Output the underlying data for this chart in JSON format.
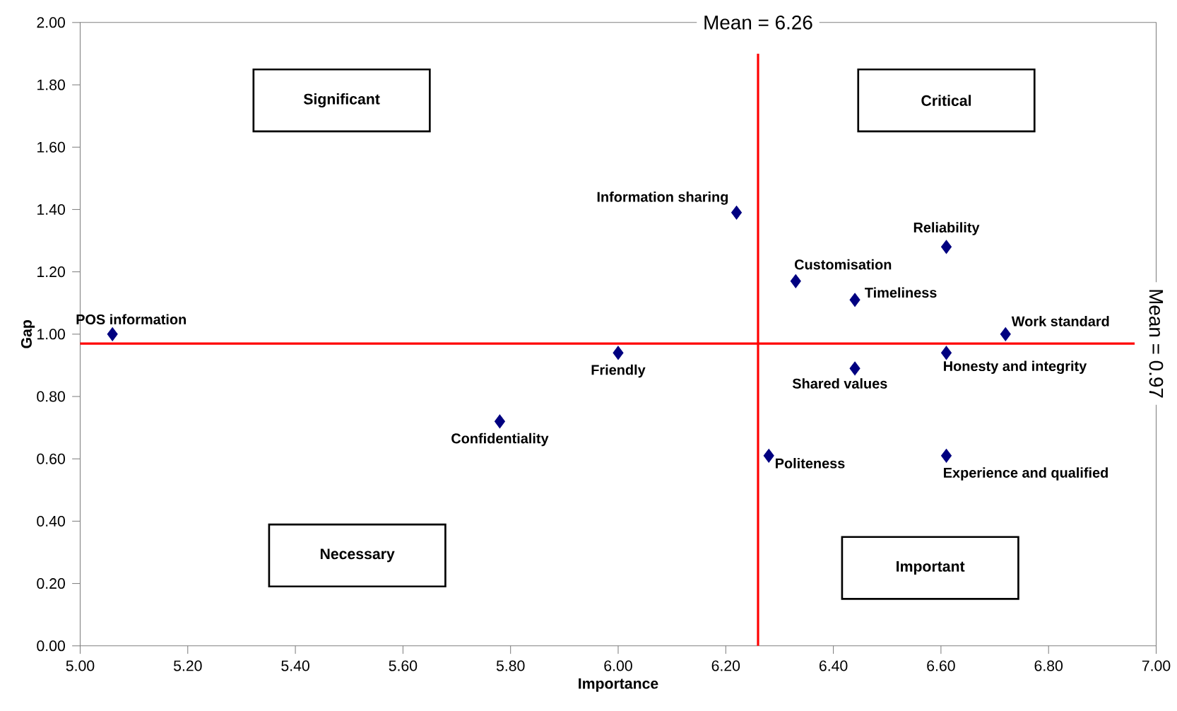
{
  "chart_data": {
    "type": "scatter",
    "xlabel": "Importance",
    "ylabel": "Gap",
    "marker": "diamond",
    "xlim": [
      5,
      7
    ],
    "ylim": [
      0,
      2
    ],
    "xticks": [
      {
        "value": 5,
        "label": "5.00"
      },
      {
        "value": 5.2,
        "label": "5.20"
      },
      {
        "value": 5.4,
        "label": "5.40"
      },
      {
        "value": 5.6,
        "label": "5.60"
      },
      {
        "value": 5.8,
        "label": "5.80"
      },
      {
        "value": 6,
        "label": "6.00"
      },
      {
        "value": 6.2,
        "label": "6.20"
      },
      {
        "value": 6.4,
        "label": "6.40"
      },
      {
        "value": 6.6,
        "label": "6.60"
      },
      {
        "value": 6.8,
        "label": "6.80"
      },
      {
        "value": 7,
        "label": "7.00"
      }
    ],
    "yticks": [
      {
        "value": 0,
        "label": "0.00"
      },
      {
        "value": 0.2,
        "label": "0.20"
      },
      {
        "value": 0.4,
        "label": "0.40"
      },
      {
        "value": 0.6,
        "label": "0.60"
      },
      {
        "value": 0.8,
        "label": "0.80"
      },
      {
        "value": 1,
        "label": "1.00"
      },
      {
        "value": 1.2,
        "label": "1.20"
      },
      {
        "value": 1.4,
        "label": "1.40"
      },
      {
        "value": 1.6,
        "label": "1.60"
      },
      {
        "value": 1.8,
        "label": "1.80"
      },
      {
        "value": 2,
        "label": "2.00"
      }
    ],
    "series": [
      {
        "color": "#000080",
        "x": [
          5.06,
          5.78,
          6.0,
          6.22,
          6.33,
          6.28,
          6.44,
          6.44,
          6.61,
          6.61,
          6.61,
          6.72
        ],
        "values": [
          1.0,
          0.72,
          0.94,
          1.39,
          1.17,
          0.61,
          1.11,
          0.89,
          1.28,
          0.94,
          0.61,
          1.0
        ]
      }
    ],
    "ref_lines": [
      {
        "axis": "x",
        "value": 6.26,
        "label": "Mean = 6.26",
        "color": "#ff0000"
      },
      {
        "axis": "y",
        "value": 0.97,
        "label": "Mean = 0.97",
        "color": "#ff0000"
      }
    ],
    "annotations": [
      "Significant",
      "Critical",
      "Necessary",
      "Important",
      {
        "text": "POS information",
        "x": 5.06,
        "y": 1.0
      },
      {
        "text": "Confidentiality",
        "x": 5.78,
        "y": 0.72
      },
      {
        "text": "Friendly",
        "x": 6.0,
        "y": 0.94
      },
      {
        "text": "Information sharing",
        "x": 6.22,
        "y": 1.39
      },
      {
        "text": "Customisation",
        "x": 6.33,
        "y": 1.17
      },
      {
        "text": "Politeness",
        "x": 6.28,
        "y": 0.61
      },
      {
        "text": "Timeliness",
        "x": 6.44,
        "y": 1.11
      },
      {
        "text": "Shared values",
        "x": 6.44,
        "y": 0.89
      },
      {
        "text": "Reliability",
        "x": 6.61,
        "y": 1.28
      },
      {
        "text": "Honesty and integrity",
        "x": 6.61,
        "y": 0.94
      },
      {
        "text": "Experience and qualified",
        "x": 6.61,
        "y": 0.61
      },
      {
        "text": "Work standard",
        "x": 6.72,
        "y": 1.0
      }
    ]
  }
}
